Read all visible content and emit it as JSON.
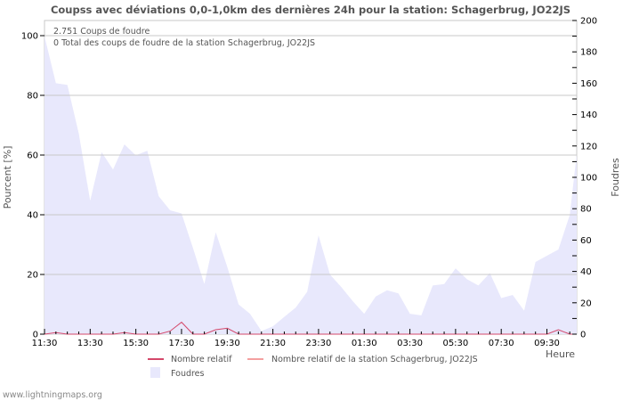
{
  "chart_data": {
    "type": "area",
    "title": "Coupss avec déviations 0,0-1,0km des dernières 24h pour la station: Schagerbrug, JO22JS",
    "xlabel": "Heure",
    "ylabel_left": "Pourcent   [%]",
    "ylabel_right": "Foudres",
    "ylim_left": [
      0,
      105
    ],
    "ylim_right": [
      0,
      200
    ],
    "yticks_left": [
      0,
      20,
      40,
      60,
      80,
      100
    ],
    "yticks_right": [
      0,
      20,
      40,
      60,
      80,
      100,
      120,
      140,
      160,
      180,
      200
    ],
    "x_tick_labels": [
      "11:30",
      "13:30",
      "15:30",
      "17:30",
      "19:30",
      "21:30",
      "23:30",
      "01:30",
      "03:30",
      "05:30",
      "07:30",
      "09:30"
    ],
    "grid": true,
    "info_lines": [
      "2.751  Coups de foudre",
      "0 Total des coups de foudre de la station Schagerbrug, JO22JS"
    ],
    "legend": [
      {
        "label": "Nombre relatif",
        "color": "#d4486a",
        "kind": "line"
      },
      {
        "label": "Nombre relatif de la station Schagerbrug, JO22JS",
        "color": "#f4a0a0",
        "kind": "line"
      },
      {
        "label": "Foudres",
        "color": "#e8e8fc",
        "kind": "area"
      }
    ],
    "x": [
      "11:30",
      "12:00",
      "12:30",
      "13:00",
      "13:30",
      "14:00",
      "14:30",
      "15:00",
      "15:30",
      "16:00",
      "16:30",
      "17:00",
      "17:30",
      "18:00",
      "18:30",
      "19:00",
      "19:30",
      "20:00",
      "20:30",
      "21:00",
      "21:30",
      "22:00",
      "22:30",
      "23:00",
      "23:30",
      "00:00",
      "00:30",
      "01:00",
      "01:30",
      "02:00",
      "02:30",
      "03:00",
      "03:30",
      "04:00",
      "04:30",
      "05:00",
      "05:30",
      "06:00",
      "06:30",
      "07:00",
      "07:30",
      "08:00",
      "08:30",
      "09:00",
      "09:30",
      "10:00",
      "10:30",
      "10:50"
    ],
    "series": [
      {
        "name": "Foudres",
        "axis": "right",
        "values": [
          190,
          160,
          159,
          128,
          85,
          116,
          105,
          121,
          114,
          117,
          88,
          79,
          77,
          55,
          32,
          65,
          43,
          19,
          13,
          2,
          5,
          11,
          17,
          27,
          63,
          38,
          30,
          21,
          13,
          24,
          28,
          26,
          13,
          12,
          31,
          32,
          42,
          35,
          31,
          39,
          23,
          25,
          15,
          46,
          50,
          54,
          76,
          115
        ]
      },
      {
        "name": "Nombre relatif",
        "axis": "left",
        "values": [
          0,
          0.5,
          0,
          0,
          0,
          0,
          0,
          0.5,
          0,
          0,
          0,
          1,
          4,
          0,
          0,
          1.5,
          2,
          0,
          0,
          0,
          0,
          0,
          0,
          0,
          0,
          0,
          0,
          0,
          0,
          0,
          0,
          0,
          0,
          0,
          0,
          0,
          0,
          0,
          0,
          0,
          0,
          0,
          0,
          0,
          0,
          1.5,
          0,
          0
        ]
      },
      {
        "name": "Nombre relatif de la station Schagerbrug, JO22JS",
        "axis": "left",
        "values": [
          0,
          0,
          0,
          0,
          0,
          0,
          0,
          0,
          0,
          0,
          0,
          0,
          0,
          0,
          0,
          0,
          0,
          0,
          0,
          0,
          0,
          0,
          0,
          0,
          0,
          0,
          0,
          0,
          0,
          0,
          0,
          0,
          0,
          0,
          0,
          0,
          0,
          0,
          0,
          0,
          0,
          0,
          0,
          0,
          0,
          0,
          0,
          0
        ]
      }
    ]
  },
  "footer": "www.lightningmaps.org"
}
